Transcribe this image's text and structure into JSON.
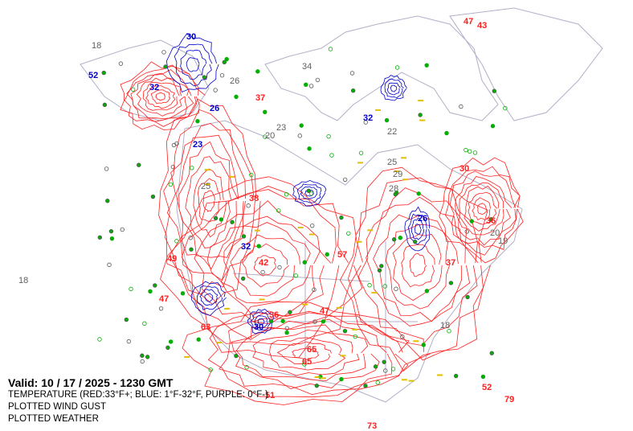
{
  "map": {
    "valid_label": "Valid: 10 / 17 / 2025  -  1230 GMT",
    "legend": [
      "TEMPERATURE (RED:33°F+; BLUE: 1°F-32°F, PURPLE: 0°F-)",
      "PLOTTED WIND GUST",
      "PLOTTED WEATHER"
    ],
    "colors": {
      "warm_contour": "#ff2020",
      "cold_contour": "#0000c8",
      "very_cold_contour": "#a000a0",
      "coastline": "#b0b0c8",
      "station_value": "#606060",
      "precip_dot": "#00b000",
      "snow_marker": "#00c000",
      "fog_marker": "#e0c000"
    },
    "labels": {
      "warm": [
        "47",
        "43",
        "37",
        "38",
        "36",
        "30",
        "37",
        "42",
        "49",
        "47",
        "36",
        "47",
        "63",
        "65",
        "65",
        "73",
        "79",
        "52",
        "57",
        "51"
      ],
      "cold": [
        "30",
        "52",
        "32",
        "26",
        "23",
        "32",
        "30",
        "26",
        "32"
      ],
      "station": [
        "18",
        "34",
        "26",
        "23",
        "20",
        "22",
        "25",
        "29",
        "28",
        "19",
        "18",
        "20",
        "25",
        "18"
      ]
    }
  }
}
